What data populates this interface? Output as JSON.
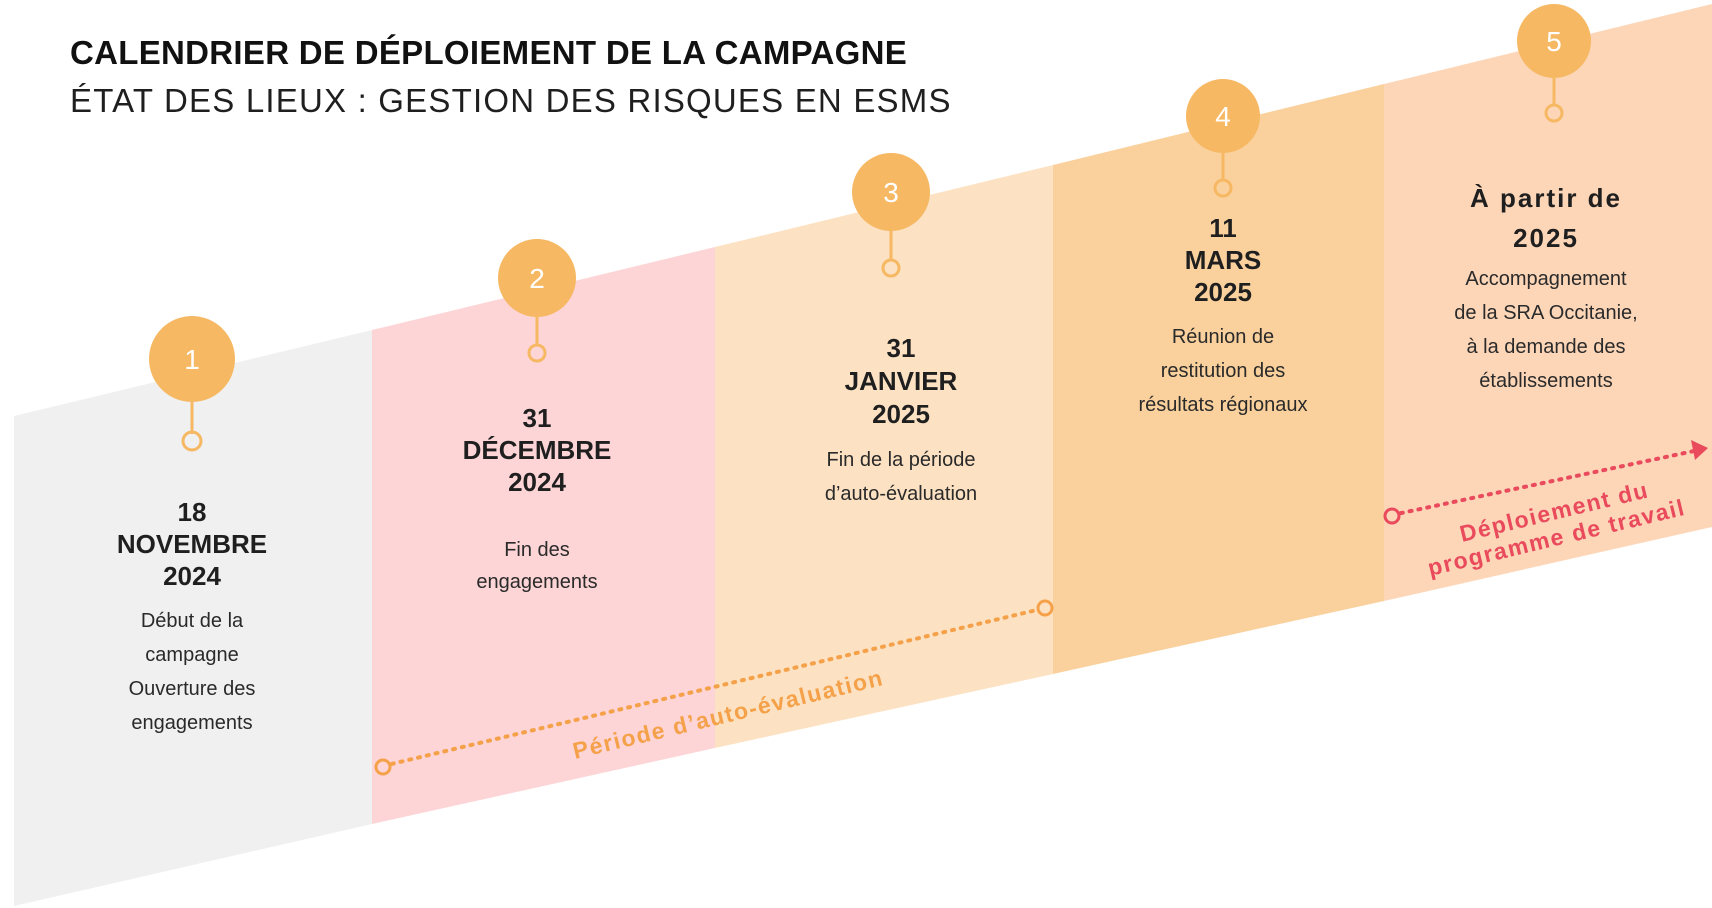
{
  "title": "CALENDRIER DE DÉPLOIEMENT DE LA CAMPAGNE",
  "subtitle": "ÉTAT DES LIEUX :  GESTION DES RISQUES EN ESMS",
  "colors": {
    "band_1": "#f0f0f0",
    "band_2": "#fdd5d6",
    "band_3": "#fce2c3",
    "band_4": "#fad19d",
    "band_5": "#fdd6b8",
    "pin": "#f6b862",
    "period_auto": "#f5a14a",
    "period_deploy": "#e94a5c"
  },
  "steps": [
    {
      "number": "1",
      "date_lines": [
        "18",
        "NOVEMBRE",
        "2024"
      ],
      "desc_lines": [
        "Début de la",
        "campagne",
        "Ouverture des",
        "engagements"
      ]
    },
    {
      "number": "2",
      "date_lines": [
        "31",
        "DÉCEMBRE",
        "2024"
      ],
      "desc_lines": [
        "Fin des",
        "engagements"
      ]
    },
    {
      "number": "3",
      "date_lines": [
        "31",
        "JANVIER",
        "2025"
      ],
      "desc_lines": [
        "Fin de la période",
        "d’auto-évaluation"
      ]
    },
    {
      "number": "4",
      "date_lines": [
        "11",
        "MARS",
        "2025"
      ],
      "desc_lines": [
        "Réunion de",
        "restitution des",
        "résultats régionaux"
      ]
    },
    {
      "number": "5",
      "date_lines": [
        "À partir de",
        "2025"
      ],
      "desc_lines": [
        "Accompagnement",
        "de la SRA Occitanie,",
        "à la demande des",
        "établissements"
      ]
    }
  ],
  "periods": {
    "auto_evaluation": "Période d’auto-évaluation",
    "deploiement_line_1": "Déploiement du",
    "deploiement_line_2": "programme de travail"
  }
}
